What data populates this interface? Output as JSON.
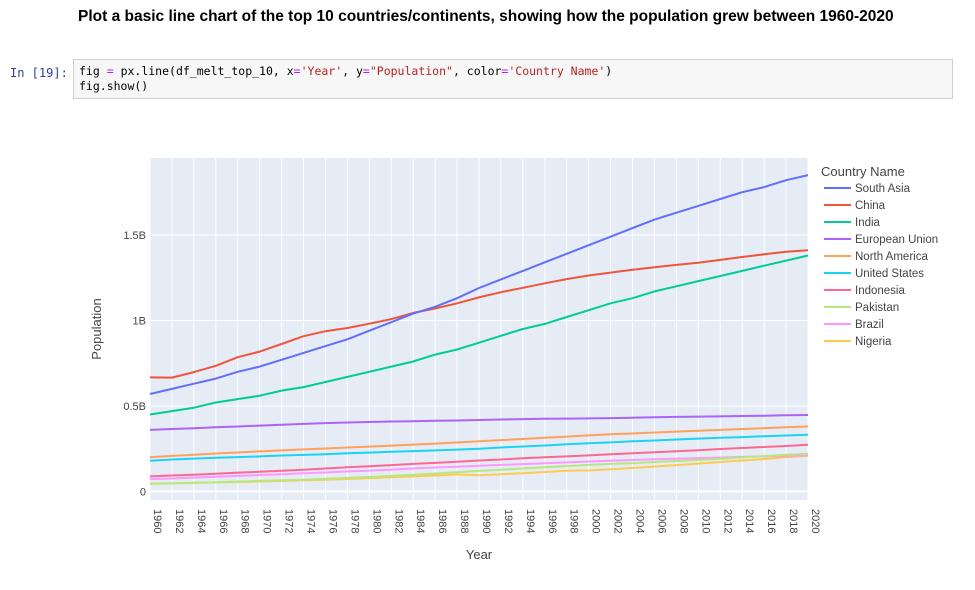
{
  "notebook": {
    "heading": "Plot a basic line chart of the top 10 countries/continents, showing how the population grew between 1960-2020",
    "prompt": "In [19]:",
    "code": {
      "l1_a": "fig ",
      "l1_eq1": "=",
      "l1_b": " px.line(df_melt_top_10, x",
      "l1_eq2": "=",
      "l1_s1": "'Year'",
      "l1_c": ", y",
      "l1_eq3": "=",
      "l1_s2": "\"Population\"",
      "l1_d": ", color",
      "l1_eq4": "=",
      "l1_s3": "'Country Name'",
      "l1_e": ")",
      "l2": "fig.show()"
    }
  },
  "chart_data": {
    "type": "line",
    "title": "",
    "xlabel": "Year",
    "ylabel": "Population",
    "legend_title": "Country Name",
    "legend_position": "right",
    "grid": true,
    "xlim": [
      1960,
      2020
    ],
    "ylim": [
      -0.05,
      1.95
    ],
    "x_ticks": [
      "1960",
      "1962",
      "1964",
      "1966",
      "1968",
      "1970",
      "1972",
      "1974",
      "1976",
      "1978",
      "1980",
      "1982",
      "1984",
      "1986",
      "1988",
      "1990",
      "1992",
      "1994",
      "1996",
      "1998",
      "2000",
      "2002",
      "2004",
      "2006",
      "2008",
      "2010",
      "2012",
      "2014",
      "2016",
      "2018",
      "2020"
    ],
    "y_ticks": [
      {
        "value": 0,
        "label": "0"
      },
      {
        "value": 0.5,
        "label": "0.5B"
      },
      {
        "value": 1,
        "label": "1B"
      },
      {
        "value": 1.5,
        "label": "1.5B"
      }
    ],
    "x": [
      1960,
      1962,
      1964,
      1966,
      1968,
      1970,
      1972,
      1974,
      1976,
      1978,
      1980,
      1982,
      1984,
      1986,
      1988,
      1990,
      1992,
      1994,
      1996,
      1998,
      2000,
      2002,
      2004,
      2006,
      2008,
      2010,
      2012,
      2014,
      2016,
      2018,
      2020
    ],
    "series": [
      {
        "name": "South Asia",
        "color": "#636efa",
        "values": [
          0.57,
          0.6,
          0.63,
          0.66,
          0.7,
          0.73,
          0.77,
          0.81,
          0.85,
          0.89,
          0.94,
          0.99,
          1.04,
          1.08,
          1.13,
          1.19,
          1.24,
          1.29,
          1.34,
          1.39,
          1.44,
          1.49,
          1.54,
          1.59,
          1.63,
          1.67,
          1.71,
          1.75,
          1.78,
          1.82,
          1.85
        ]
      },
      {
        "name": "China",
        "color": "#ef553b",
        "values": [
          0.667,
          0.666,
          0.698,
          0.735,
          0.785,
          0.818,
          0.862,
          0.908,
          0.937,
          0.956,
          0.981,
          1.008,
          1.044,
          1.07,
          1.1,
          1.135,
          1.165,
          1.191,
          1.217,
          1.242,
          1.263,
          1.28,
          1.296,
          1.311,
          1.325,
          1.338,
          1.354,
          1.371,
          1.387,
          1.402,
          1.411
        ]
      },
      {
        "name": "India",
        "color": "#00cc96",
        "values": [
          0.45,
          0.47,
          0.49,
          0.52,
          0.54,
          0.56,
          0.59,
          0.61,
          0.64,
          0.67,
          0.7,
          0.73,
          0.76,
          0.8,
          0.83,
          0.87,
          0.91,
          0.95,
          0.98,
          1.02,
          1.06,
          1.1,
          1.13,
          1.17,
          1.2,
          1.23,
          1.26,
          1.29,
          1.32,
          1.35,
          1.38
        ]
      },
      {
        "name": "European Union",
        "color": "#ab63fa",
        "values": [
          0.36,
          0.365,
          0.37,
          0.375,
          0.38,
          0.385,
          0.39,
          0.395,
          0.4,
          0.403,
          0.406,
          0.409,
          0.411,
          0.413,
          0.415,
          0.418,
          0.421,
          0.423,
          0.425,
          0.426,
          0.427,
          0.429,
          0.431,
          0.434,
          0.436,
          0.438,
          0.439,
          0.441,
          0.443,
          0.446,
          0.447
        ]
      },
      {
        "name": "North America",
        "color": "#ffa15a",
        "values": [
          0.2,
          0.208,
          0.215,
          0.222,
          0.228,
          0.234,
          0.24,
          0.246,
          0.251,
          0.257,
          0.262,
          0.268,
          0.274,
          0.28,
          0.286,
          0.293,
          0.3,
          0.307,
          0.314,
          0.321,
          0.328,
          0.334,
          0.339,
          0.345,
          0.35,
          0.355,
          0.36,
          0.365,
          0.37,
          0.375,
          0.38
        ]
      },
      {
        "name": "United States",
        "color": "#19d3f3",
        "values": [
          0.18,
          0.187,
          0.192,
          0.197,
          0.201,
          0.205,
          0.21,
          0.214,
          0.218,
          0.223,
          0.227,
          0.232,
          0.236,
          0.24,
          0.245,
          0.25,
          0.257,
          0.263,
          0.269,
          0.276,
          0.282,
          0.287,
          0.293,
          0.298,
          0.304,
          0.309,
          0.314,
          0.318,
          0.323,
          0.327,
          0.331
        ]
      },
      {
        "name": "Indonesia",
        "color": "#ff6692",
        "values": [
          0.088,
          0.093,
          0.098,
          0.104,
          0.11,
          0.115,
          0.121,
          0.127,
          0.134,
          0.141,
          0.147,
          0.154,
          0.161,
          0.167,
          0.174,
          0.181,
          0.187,
          0.194,
          0.2,
          0.205,
          0.211,
          0.217,
          0.223,
          0.229,
          0.235,
          0.241,
          0.248,
          0.254,
          0.26,
          0.266,
          0.273
        ]
      },
      {
        "name": "Pakistan",
        "color": "#b6e880",
        "values": [
          0.045,
          0.048,
          0.051,
          0.054,
          0.058,
          0.062,
          0.065,
          0.069,
          0.074,
          0.079,
          0.085,
          0.091,
          0.098,
          0.105,
          0.112,
          0.12,
          0.127,
          0.134,
          0.141,
          0.148,
          0.155,
          0.161,
          0.166,
          0.172,
          0.178,
          0.184,
          0.191,
          0.199,
          0.207,
          0.215,
          0.221
        ]
      },
      {
        "name": "Brazil",
        "color": "#ff97ff",
        "values": [
          0.072,
          0.076,
          0.081,
          0.086,
          0.091,
          0.096,
          0.101,
          0.106,
          0.111,
          0.117,
          0.122,
          0.128,
          0.134,
          0.14,
          0.145,
          0.15,
          0.155,
          0.16,
          0.165,
          0.17,
          0.175,
          0.179,
          0.184,
          0.188,
          0.191,
          0.195,
          0.198,
          0.202,
          0.205,
          0.208,
          0.212
        ]
      },
      {
        "name": "Nigeria",
        "color": "#fecb52",
        "values": [
          0.045,
          0.047,
          0.05,
          0.053,
          0.055,
          0.058,
          0.061,
          0.065,
          0.069,
          0.073,
          0.078,
          0.083,
          0.088,
          0.093,
          0.099,
          0.095,
          0.101,
          0.107,
          0.114,
          0.121,
          0.123,
          0.13,
          0.137,
          0.146,
          0.154,
          0.163,
          0.172,
          0.181,
          0.19,
          0.2,
          0.208
        ]
      }
    ]
  }
}
